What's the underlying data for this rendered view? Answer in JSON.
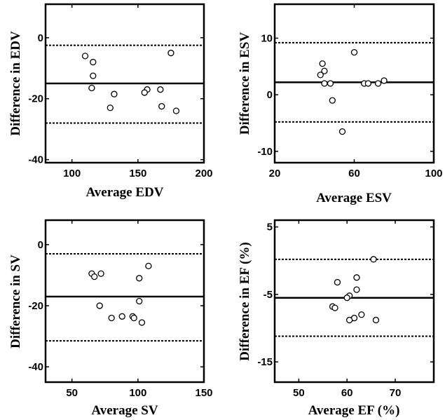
{
  "chart_data": [
    {
      "type": "scatter",
      "title": "",
      "xlabel": "Average EDV",
      "ylabel": "Difference in EDV",
      "xlim": [
        80,
        200
      ],
      "ylim": [
        -41,
        11
      ],
      "xticks": [
        100,
        150,
        200
      ],
      "yticks": [
        0,
        -20,
        -40
      ],
      "grid": false,
      "legend": "none",
      "lines": {
        "mean": -15,
        "upper": -2.5,
        "lower": -28
      },
      "points": [
        {
          "x": 110,
          "y": -6
        },
        {
          "x": 116,
          "y": -8
        },
        {
          "x": 116,
          "y": -12.5
        },
        {
          "x": 115,
          "y": -16.5
        },
        {
          "x": 132,
          "y": -18.5
        },
        {
          "x": 129,
          "y": -23
        },
        {
          "x": 157,
          "y": -17
        },
        {
          "x": 155,
          "y": -18
        },
        {
          "x": 167,
          "y": -17
        },
        {
          "x": 168,
          "y": -22.5
        },
        {
          "x": 175,
          "y": -5
        },
        {
          "x": 179,
          "y": -24
        }
      ]
    },
    {
      "type": "scatter",
      "title": "",
      "xlabel": "Average ESV",
      "ylabel": "Difference in ESV",
      "xlim": [
        20,
        100
      ],
      "ylim": [
        -12,
        16
      ],
      "xticks": [
        20,
        60,
        100
      ],
      "yticks": [
        10,
        0,
        -10
      ],
      "grid": false,
      "legend": "none",
      "lines": {
        "mean": 2.2,
        "upper": 9.2,
        "lower": -4.8
      },
      "points": [
        {
          "x": 44,
          "y": 5.5
        },
        {
          "x": 45,
          "y": 4.2
        },
        {
          "x": 43,
          "y": 3.5
        },
        {
          "x": 45,
          "y": 2
        },
        {
          "x": 48,
          "y": 2
        },
        {
          "x": 49,
          "y": -1
        },
        {
          "x": 60,
          "y": 7.5
        },
        {
          "x": 54,
          "y": -6.5
        },
        {
          "x": 65,
          "y": 2
        },
        {
          "x": 67,
          "y": 2
        },
        {
          "x": 72,
          "y": 2
        },
        {
          "x": 75,
          "y": 2.5
        }
      ]
    },
    {
      "type": "scatter",
      "title": "",
      "xlabel": "Average SV",
      "ylabel": "Difference in SV",
      "xlim": [
        30,
        150
      ],
      "ylim": [
        -45,
        8
      ],
      "xticks": [
        50,
        100,
        150
      ],
      "yticks": [
        0,
        -20,
        -40
      ],
      "grid": false,
      "legend": "none",
      "lines": {
        "mean": -17,
        "upper": -3,
        "lower": -31.5
      },
      "points": [
        {
          "x": 65,
          "y": -9.5
        },
        {
          "x": 67,
          "y": -10.5
        },
        {
          "x": 72,
          "y": -9.5
        },
        {
          "x": 71,
          "y": -20
        },
        {
          "x": 80,
          "y": -24
        },
        {
          "x": 88,
          "y": -23.5
        },
        {
          "x": 96,
          "y": -23.5
        },
        {
          "x": 97,
          "y": -24
        },
        {
          "x": 101,
          "y": -11
        },
        {
          "x": 101,
          "y": -18.5
        },
        {
          "x": 103,
          "y": -25.5
        },
        {
          "x": 108,
          "y": -7
        }
      ]
    },
    {
      "type": "scatter",
      "title": "",
      "xlabel": "Average EF (%)",
      "ylabel": "Difference in EF (%)",
      "xlim": [
        45,
        78
      ],
      "ylim": [
        -18,
        6
      ],
      "xticks": [
        50,
        60,
        70
      ],
      "yticks": [
        5,
        -5,
        -15
      ],
      "grid": false,
      "legend": "none",
      "lines": {
        "mean": -5.5,
        "upper": 0.2,
        "lower": -11.2
      },
      "points": [
        {
          "x": 58,
          "y": -3.2
        },
        {
          "x": 62,
          "y": -2.5
        },
        {
          "x": 62,
          "y": -4.3
        },
        {
          "x": 60.5,
          "y": -5.2
        },
        {
          "x": 60,
          "y": -5.5
        },
        {
          "x": 57,
          "y": -6.8
        },
        {
          "x": 57.5,
          "y": -7
        },
        {
          "x": 63,
          "y": -8
        },
        {
          "x": 61.5,
          "y": -8.5
        },
        {
          "x": 60.5,
          "y": -8.8
        },
        {
          "x": 66,
          "y": -8.8
        },
        {
          "x": 65.5,
          "y": 0.2
        }
      ]
    }
  ]
}
